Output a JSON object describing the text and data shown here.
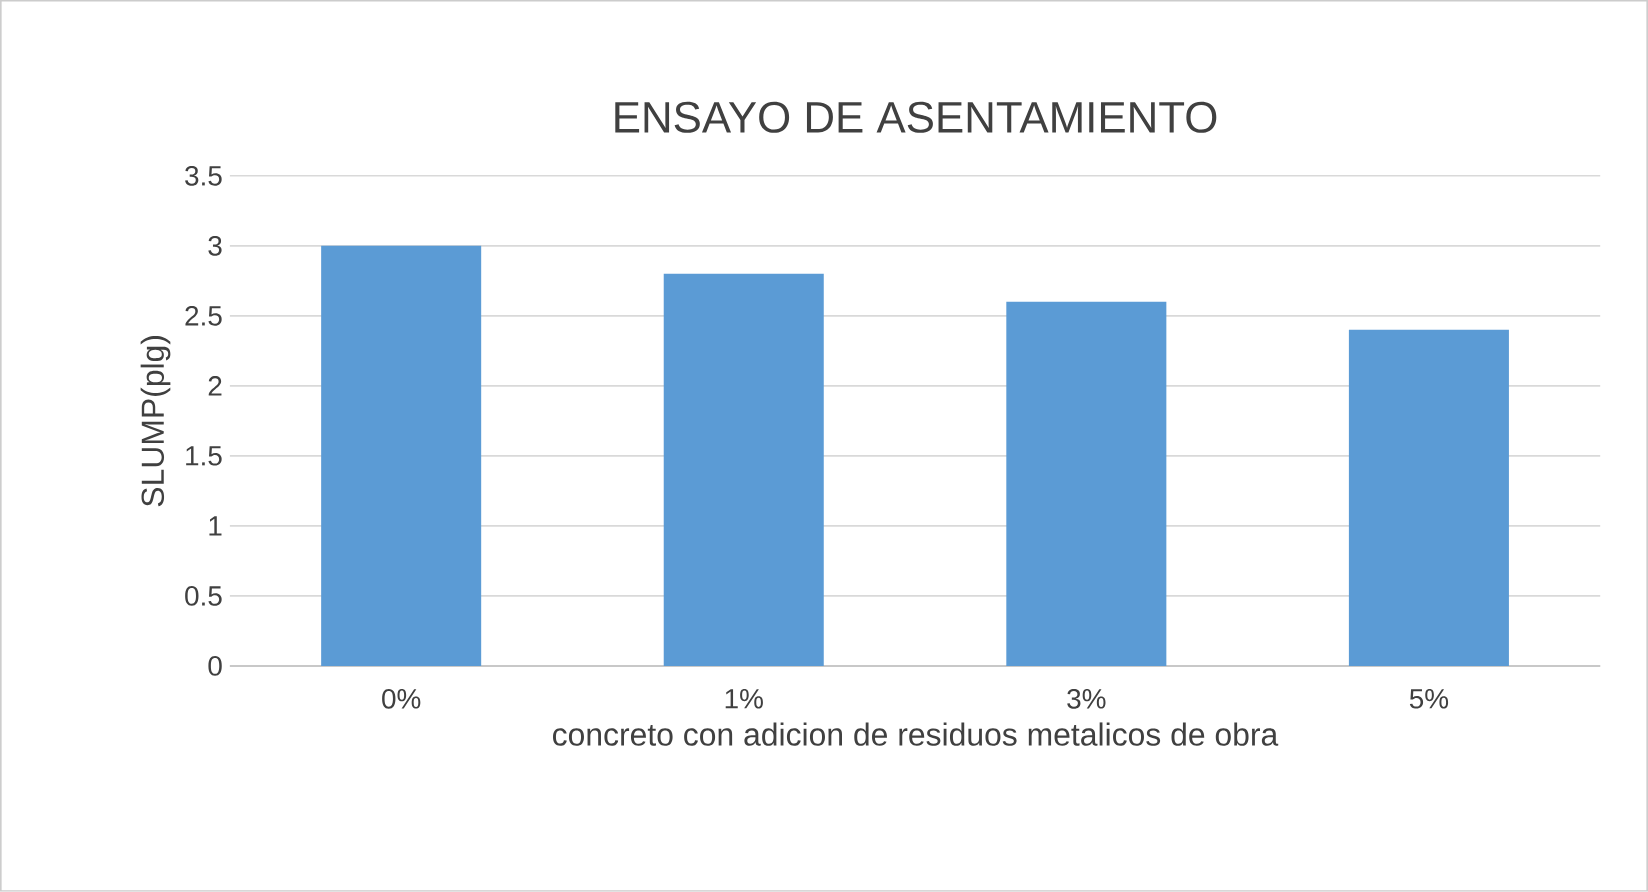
{
  "chart_data": {
    "type": "bar",
    "title": "ENSAYO DE ASENTAMIENTO",
    "xlabel": "concreto con adicion de residuos metalicos de obra",
    "ylabel": "SLUMP(plg)",
    "categories": [
      "0%",
      "1%",
      "3%",
      "5%"
    ],
    "values": [
      3,
      2.8,
      2.6,
      2.4
    ],
    "color": "#5b9bd5",
    "ylim": [
      0,
      3.5
    ],
    "yticks": [
      0,
      0.5,
      1,
      1.5,
      2,
      2.5,
      3,
      3.5
    ],
    "grid": "y"
  }
}
